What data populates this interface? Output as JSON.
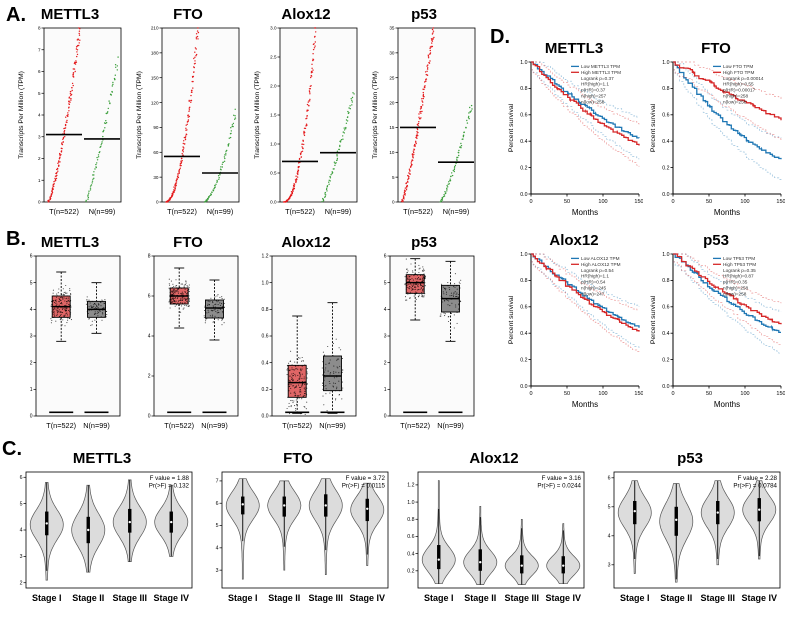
{
  "figure": {
    "panel_labels": {
      "A": "A.",
      "B": "B.",
      "C": "C.",
      "D": "D."
    }
  },
  "shared": {
    "expression_ylabel": "Transcripts Per Million (TPM)",
    "survival_ylabel": "Percent survival",
    "survival_xlabel": "Months",
    "group_labels": [
      "T(n=522)",
      "N(n=99)"
    ],
    "stage_labels": [
      "Stage I",
      "Stage II",
      "Stage III",
      "Stage IV"
    ]
  },
  "colors": {
    "tumor_dots": "#e41a1c",
    "normal_dots": "#3a9e3a",
    "tumor_box": "#e06666",
    "normal_box": "#8c8c8c",
    "violin_fill": "#dcdcdc",
    "km_low": "#1f77b4",
    "km_high": "#d62728"
  },
  "chart_data": [
    {
      "panel": "A",
      "type": "scatter",
      "title": "METTL3",
      "ylabel": "Transcripts Per Million (TPM)",
      "ylim": [
        0,
        8
      ],
      "yticks": [
        0,
        1,
        2,
        3,
        4,
        5,
        6,
        7,
        8
      ],
      "groups": [
        {
          "label": "T(n=522)",
          "color": "#e41a1c",
          "median": 3.1,
          "max": 8
        },
        {
          "label": "N(n=99)",
          "color": "#3a9e3a",
          "median": 2.9,
          "max": 6.5
        }
      ]
    },
    {
      "panel": "A",
      "type": "scatter",
      "title": "FTO",
      "ylabel": "Transcripts Per Million (TPM)",
      "ylim": [
        0,
        210
      ],
      "yticks": [
        0,
        30,
        60,
        90,
        120,
        150,
        180,
        210
      ],
      "groups": [
        {
          "label": "T(n=522)",
          "color": "#e41a1c",
          "median": 55,
          "max": 210
        },
        {
          "label": "N(n=99)",
          "color": "#3a9e3a",
          "median": 35,
          "max": 110
        }
      ]
    },
    {
      "panel": "A",
      "type": "scatter",
      "title": "Alox12",
      "ylabel": "Transcripts Per Million (TPM)",
      "ylim": [
        0,
        3
      ],
      "yticks": [
        0,
        0.5,
        1,
        1.5,
        2,
        2.5,
        3
      ],
      "ytick_labels": [
        "0.0",
        "0.5",
        "1.0",
        "1.5",
        "2.0",
        "2.5",
        "3.0"
      ],
      "groups": [
        {
          "label": "T(n=522)",
          "color": "#e41a1c",
          "median": 0.7,
          "max": 3
        },
        {
          "label": "N(n=99)",
          "color": "#3a9e3a",
          "median": 0.85,
          "max": 1.9
        }
      ]
    },
    {
      "panel": "A",
      "type": "scatter",
      "title": "p53",
      "ylabel": "Transcripts Per Million (TPM)",
      "ylim": [
        0,
        35
      ],
      "yticks": [
        0,
        5,
        10,
        15,
        20,
        25,
        30,
        35
      ],
      "groups": [
        {
          "label": "T(n=522)",
          "color": "#e41a1c",
          "median": 15,
          "max": 35
        },
        {
          "label": "N(n=99)",
          "color": "#3a9e3a",
          "median": 8,
          "max": 20
        }
      ]
    },
    {
      "panel": "B",
      "type": "box",
      "title": "METTL3",
      "ylim": [
        0,
        6
      ],
      "yticks": [
        0,
        1,
        2,
        3,
        4,
        5,
        6
      ],
      "zero_strip": true,
      "groups": [
        {
          "label": "T(n=522)",
          "color": "#e06666",
          "median": 4.1,
          "q1": 3.7,
          "q3": 4.5,
          "lo": 2.8,
          "hi": 5.4,
          "n_points": 170
        },
        {
          "label": "N(n=99)",
          "color": "#8c8c8c",
          "median": 4.0,
          "q1": 3.7,
          "q3": 4.3,
          "lo": 3.1,
          "hi": 5.0,
          "n_points": 80
        }
      ]
    },
    {
      "panel": "B",
      "type": "box",
      "title": "FTO",
      "ylim": [
        0,
        8
      ],
      "yticks": [
        0,
        2,
        4,
        6,
        8
      ],
      "zero_strip": true,
      "groups": [
        {
          "label": "T(n=522)",
          "color": "#e06666",
          "median": 6.0,
          "q1": 5.6,
          "q3": 6.4,
          "lo": 4.4,
          "hi": 7.4,
          "n_points": 170
        },
        {
          "label": "N(n=99)",
          "color": "#8c8c8c",
          "median": 5.4,
          "q1": 4.9,
          "q3": 5.8,
          "lo": 3.8,
          "hi": 6.8,
          "n_points": 80
        }
      ]
    },
    {
      "panel": "B",
      "type": "box",
      "title": "Alox12",
      "ylim": [
        0,
        1.2
      ],
      "yticks": [
        0,
        0.2,
        0.4,
        0.6,
        0.8,
        1,
        1.2
      ],
      "ytick_labels": [
        "0.0",
        "0.2",
        "0.4",
        "0.6",
        "0.8",
        "1.0",
        "1.2"
      ],
      "zero_strip": true,
      "groups": [
        {
          "label": "T(n=522)",
          "color": "#e06666",
          "median": 0.25,
          "q1": 0.14,
          "q3": 0.38,
          "lo": 0.02,
          "hi": 0.75,
          "n_points": 170
        },
        {
          "label": "N(n=99)",
          "color": "#8c8c8c",
          "median": 0.3,
          "q1": 0.19,
          "q3": 0.45,
          "lo": 0.02,
          "hi": 0.85,
          "n_points": 80
        }
      ]
    },
    {
      "panel": "B",
      "type": "box",
      "title": "p53",
      "ylim": [
        0,
        6
      ],
      "yticks": [
        0,
        1,
        2,
        3,
        4,
        5,
        6
      ],
      "zero_strip": true,
      "groups": [
        {
          "label": "T(n=522)",
          "color": "#e06666",
          "median": 5.0,
          "q1": 4.6,
          "q3": 5.3,
          "lo": 3.6,
          "hi": 5.9,
          "n_points": 170
        },
        {
          "label": "N(n=99)",
          "color": "#8c8c8c",
          "median": 4.4,
          "q1": 3.9,
          "q3": 4.9,
          "lo": 2.8,
          "hi": 5.8,
          "n_points": 80
        }
      ]
    },
    {
      "panel": "C",
      "type": "violin",
      "title": "METTL3",
      "annotation": [
        "F value = 1.88",
        "Pr(>F) = 0.132"
      ],
      "categories": [
        "Stage I",
        "Stage II",
        "Stage III",
        "Stage IV"
      ],
      "ylim": [
        1.8,
        6.2
      ],
      "yticks": [
        2,
        3,
        4,
        5,
        6
      ],
      "violins": [
        {
          "mu": 4.2,
          "sigma": 0.55,
          "lo": 2.1,
          "hi": 5.8,
          "q1": 3.8,
          "q3": 4.7,
          "median": 4.25
        },
        {
          "mu": 4.0,
          "sigma": 0.6,
          "lo": 2.4,
          "hi": 5.7,
          "q1": 3.5,
          "q3": 4.5,
          "median": 4.0
        },
        {
          "mu": 4.3,
          "sigma": 0.55,
          "lo": 2.8,
          "hi": 5.9,
          "q1": 3.9,
          "q3": 4.8,
          "median": 4.3
        },
        {
          "mu": 4.3,
          "sigma": 0.5,
          "lo": 3.0,
          "hi": 5.7,
          "q1": 3.9,
          "q3": 4.7,
          "median": 4.3
        }
      ]
    },
    {
      "panel": "C",
      "type": "violin",
      "title": "FTO",
      "annotation": [
        "F value = 3.72",
        "Pr(>F) = 0.0115"
      ],
      "categories": [
        "Stage I",
        "Stage II",
        "Stage III",
        "Stage IV"
      ],
      "ylim": [
        2.2,
        7.4
      ],
      "yticks": [
        3,
        4,
        5,
        6,
        7
      ],
      "violins": [
        {
          "mu": 5.9,
          "sigma": 0.6,
          "lo": 2.6,
          "hi": 7.1,
          "q1": 5.5,
          "q3": 6.3,
          "median": 5.95
        },
        {
          "mu": 5.9,
          "sigma": 0.6,
          "lo": 3.0,
          "hi": 7.0,
          "q1": 5.4,
          "q3": 6.3,
          "median": 5.9
        },
        {
          "mu": 5.9,
          "sigma": 0.65,
          "lo": 2.8,
          "hi": 7.1,
          "q1": 5.4,
          "q3": 6.4,
          "median": 5.9
        },
        {
          "mu": 5.7,
          "sigma": 0.6,
          "lo": 3.2,
          "hi": 6.9,
          "q1": 5.2,
          "q3": 6.2,
          "median": 5.75
        }
      ]
    },
    {
      "panel": "C",
      "type": "violin",
      "title": "Alox12",
      "annotation": [
        "F value = 3.16",
        "Pr(>F) = 0.0244"
      ],
      "categories": [
        "Stage I",
        "Stage II",
        "Stage III",
        "Stage IV"
      ],
      "ylim": [
        0,
        1.35
      ],
      "yticks": [
        0.2,
        0.4,
        0.6,
        0.8,
        1,
        1.2
      ],
      "ytick_labels": [
        "0.2",
        "0.4",
        "0.6",
        "0.8",
        "1.0",
        "1.2"
      ],
      "violins": [
        {
          "mu": 0.33,
          "sigma": 0.14,
          "lo": 0.05,
          "hi": 1.25,
          "q1": 0.22,
          "q3": 0.5,
          "median": 0.33
        },
        {
          "mu": 0.3,
          "sigma": 0.13,
          "lo": 0.04,
          "hi": 0.95,
          "q1": 0.2,
          "q3": 0.45,
          "median": 0.3
        },
        {
          "mu": 0.26,
          "sigma": 0.11,
          "lo": 0.04,
          "hi": 0.8,
          "q1": 0.17,
          "q3": 0.38,
          "median": 0.26
        },
        {
          "mu": 0.26,
          "sigma": 0.11,
          "lo": 0.05,
          "hi": 0.75,
          "q1": 0.17,
          "q3": 0.37,
          "median": 0.26
        }
      ]
    },
    {
      "panel": "C",
      "type": "violin",
      "title": "p53",
      "annotation": [
        "F value = 2.28",
        "Pr(>F) = 0.0784"
      ],
      "categories": [
        "Stage I",
        "Stage II",
        "Stage III",
        "Stage IV"
      ],
      "ylim": [
        2.2,
        6.2
      ],
      "yticks": [
        3,
        4,
        5,
        6
      ],
      "violins": [
        {
          "mu": 4.8,
          "sigma": 0.5,
          "lo": 2.7,
          "hi": 5.9,
          "q1": 4.4,
          "q3": 5.2,
          "median": 4.85
        },
        {
          "mu": 4.5,
          "sigma": 0.6,
          "lo": 2.4,
          "hi": 5.8,
          "q1": 4.0,
          "q3": 5.0,
          "median": 4.55
        },
        {
          "mu": 4.8,
          "sigma": 0.5,
          "lo": 3.0,
          "hi": 5.9,
          "q1": 4.4,
          "q3": 5.2,
          "median": 4.8
        },
        {
          "mu": 4.9,
          "sigma": 0.45,
          "lo": 3.2,
          "hi": 5.9,
          "q1": 4.5,
          "q3": 5.3,
          "median": 4.9
        }
      ]
    },
    {
      "panel": "D",
      "type": "line",
      "subtype": "kaplan_meier",
      "title": "METTL3",
      "xlabel": "Months",
      "ylabel": "Percent survival",
      "xlim": [
        0,
        150
      ],
      "xticks": [
        0,
        50,
        100,
        150
      ],
      "yticks": [
        0,
        0.2,
        0.4,
        0.6,
        0.8,
        1
      ],
      "ytick_labels": [
        "0.0",
        "0.2",
        "0.4",
        "0.6",
        "0.8",
        "1.0"
      ],
      "series": [
        {
          "name": "Low METTL3 TPM",
          "color": "#1f77b4",
          "final": 0.42
        },
        {
          "name": "High METTL3 TPM",
          "color": "#d62728",
          "final": 0.37
        }
      ],
      "legend_stats": [
        "Logrank p=0.37",
        "HR(high)=1.1",
        "p(HR)=0.37",
        "n(high)=257",
        "n(low)=258"
      ]
    },
    {
      "panel": "D",
      "type": "line",
      "subtype": "kaplan_meier",
      "title": "FTO",
      "xlabel": "Months",
      "ylabel": "Percent survival",
      "xlim": [
        0,
        150
      ],
      "xticks": [
        0,
        50,
        100,
        150
      ],
      "yticks": [
        0,
        0.2,
        0.4,
        0.6,
        0.8,
        1
      ],
      "ytick_labels": [
        "0.0",
        "0.2",
        "0.4",
        "0.6",
        "0.8",
        "1.0"
      ],
      "series": [
        {
          "name": "Low FTO TPM",
          "color": "#1f77b4",
          "final": 0.26
        },
        {
          "name": "High FTO TPM",
          "color": "#d62728",
          "final": 0.57
        }
      ],
      "legend_stats": [
        "Logrank p=0.00014",
        "HR(high)=0.55",
        "p(HR)=0.00017",
        "n(high)=258",
        "n(low)=258"
      ]
    },
    {
      "panel": "D",
      "type": "line",
      "subtype": "kaplan_meier",
      "title": "Alox12",
      "xlabel": "Months",
      "ylabel": "Percent survival",
      "xlim": [
        0,
        150
      ],
      "xticks": [
        0,
        50,
        100,
        150
      ],
      "yticks": [
        0,
        0.2,
        0.4,
        0.6,
        0.8,
        1
      ],
      "ytick_labels": [
        "0.0",
        "0.2",
        "0.4",
        "0.6",
        "0.8",
        "1.0"
      ],
      "series": [
        {
          "name": "Low ALOX12 TPM",
          "color": "#1f77b4",
          "final": 0.44
        },
        {
          "name": "High ALOX12 TPM",
          "color": "#d62728",
          "final": 0.41
        }
      ],
      "legend_stats": [
        "Logrank p=0.54",
        "HR(high)=1.1",
        "p(HR)=0.54",
        "n(high)=245",
        "n(low)=247"
      ]
    },
    {
      "panel": "D",
      "type": "line",
      "subtype": "kaplan_meier",
      "title": "p53",
      "xlabel": "Months",
      "ylabel": "Percent survival",
      "xlim": [
        0,
        150
      ],
      "xticks": [
        0,
        50,
        100,
        150
      ],
      "yticks": [
        0,
        0.2,
        0.4,
        0.6,
        0.8,
        1
      ],
      "ytick_labels": [
        "0.0",
        "0.2",
        "0.4",
        "0.6",
        "0.8",
        "1.0"
      ],
      "series": [
        {
          "name": "Low TP53 TPM",
          "color": "#1f77b4",
          "final": 0.4
        },
        {
          "name": "High TP53 TPM",
          "color": "#d62728",
          "final": 0.46
        }
      ],
      "legend_stats": [
        "Logrank p=0.35",
        "HR(high)=0.87",
        "p(HR)=0.35",
        "n(high)=258",
        "n(low)=258"
      ]
    }
  ]
}
